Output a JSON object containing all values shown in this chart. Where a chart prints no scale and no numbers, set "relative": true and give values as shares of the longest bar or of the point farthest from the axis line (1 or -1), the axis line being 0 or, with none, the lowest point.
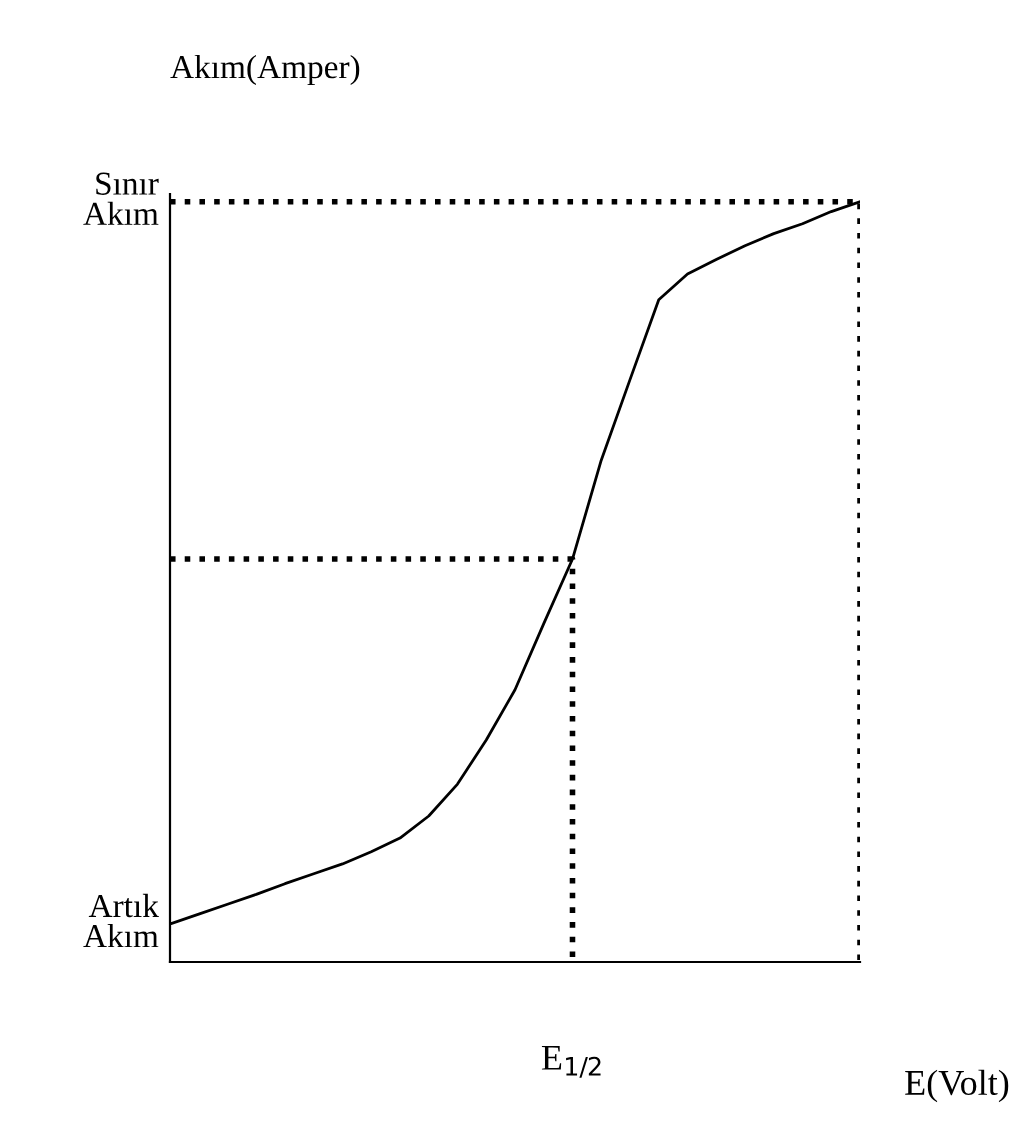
{
  "chart_data": {
    "type": "line",
    "relative": true,
    "ylabel": "Akım(Amper)",
    "xlabel": "E(Volt)",
    "categories": [
      null,
      null,
      null,
      null,
      null,
      null,
      null,
      null,
      null,
      null,
      null,
      null,
      null,
      null,
      null,
      null,
      null,
      null,
      null,
      null,
      null,
      null,
      null,
      null,
      null
    ],
    "series": [
      {
        "color": "#000000",
        "values": [
          0.05,
          0.063,
          0.076,
          0.089,
          0.103,
          0.116,
          0.129,
          0.145,
          0.163,
          0.192,
          0.234,
          0.292,
          0.358,
          0.445,
          0.53,
          0.66,
          0.766,
          0.871,
          0.905,
          0.924,
          0.942,
          0.958,
          0.971,
          0.987,
          1.0
        ]
      }
    ],
    "ref_lines": [
      {
        "axis": "y",
        "value": 1.0,
        "color": "#000000",
        "line_style": "dotted"
      },
      {
        "axis": "y",
        "value": 0.53,
        "label": "E$_{1/2}$",
        "color": "#000000",
        "line_style": "dotted"
      }
    ],
    "annotations": [
      "Sınır\nAkım",
      "Artık\nAkım"
    ],
    "marker": "none",
    "line_style": "solid",
    "grid": false,
    "legend": false
  }
}
